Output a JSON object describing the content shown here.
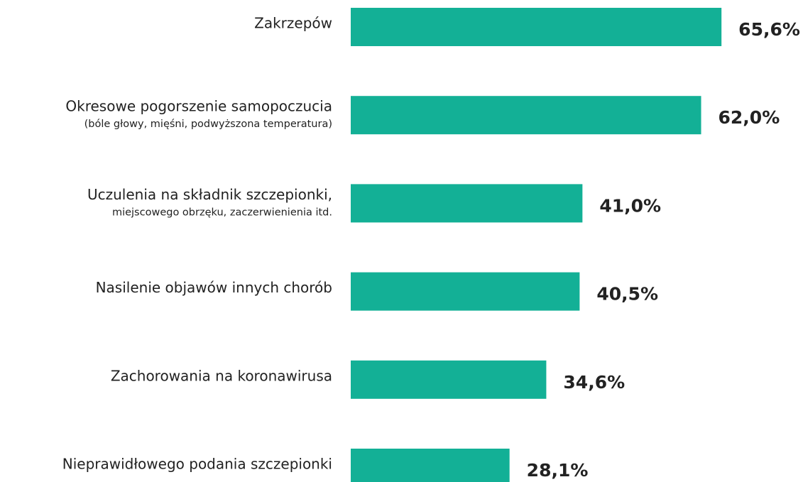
{
  "chart_data": {
    "type": "hbar",
    "categories": [
      "Zakrzepów",
      "Okresowe pogorszenie samopoczucia",
      "Uczulenia na składnik szczepionki,",
      "Nasilenie objawów innych chorób",
      "Zachorowania na koronawirusa",
      "Nieprawidłowego podania szczepionki"
    ],
    "category_details": [
      null,
      "(bóle głowy, mięśni, podwyższona temperatura)",
      "miejscowego obrzęku, zaczerwienienia itd.",
      null,
      null,
      null
    ],
    "values": [
      65.6,
      62.0,
      41.0,
      40.5,
      34.6,
      28.1
    ],
    "value_labels": [
      "65,6%",
      "62,0%",
      "41,0%",
      "40,5%",
      "34,6%",
      "28,1%"
    ],
    "color": "#13b096",
    "xlim": [
      0,
      100
    ]
  }
}
